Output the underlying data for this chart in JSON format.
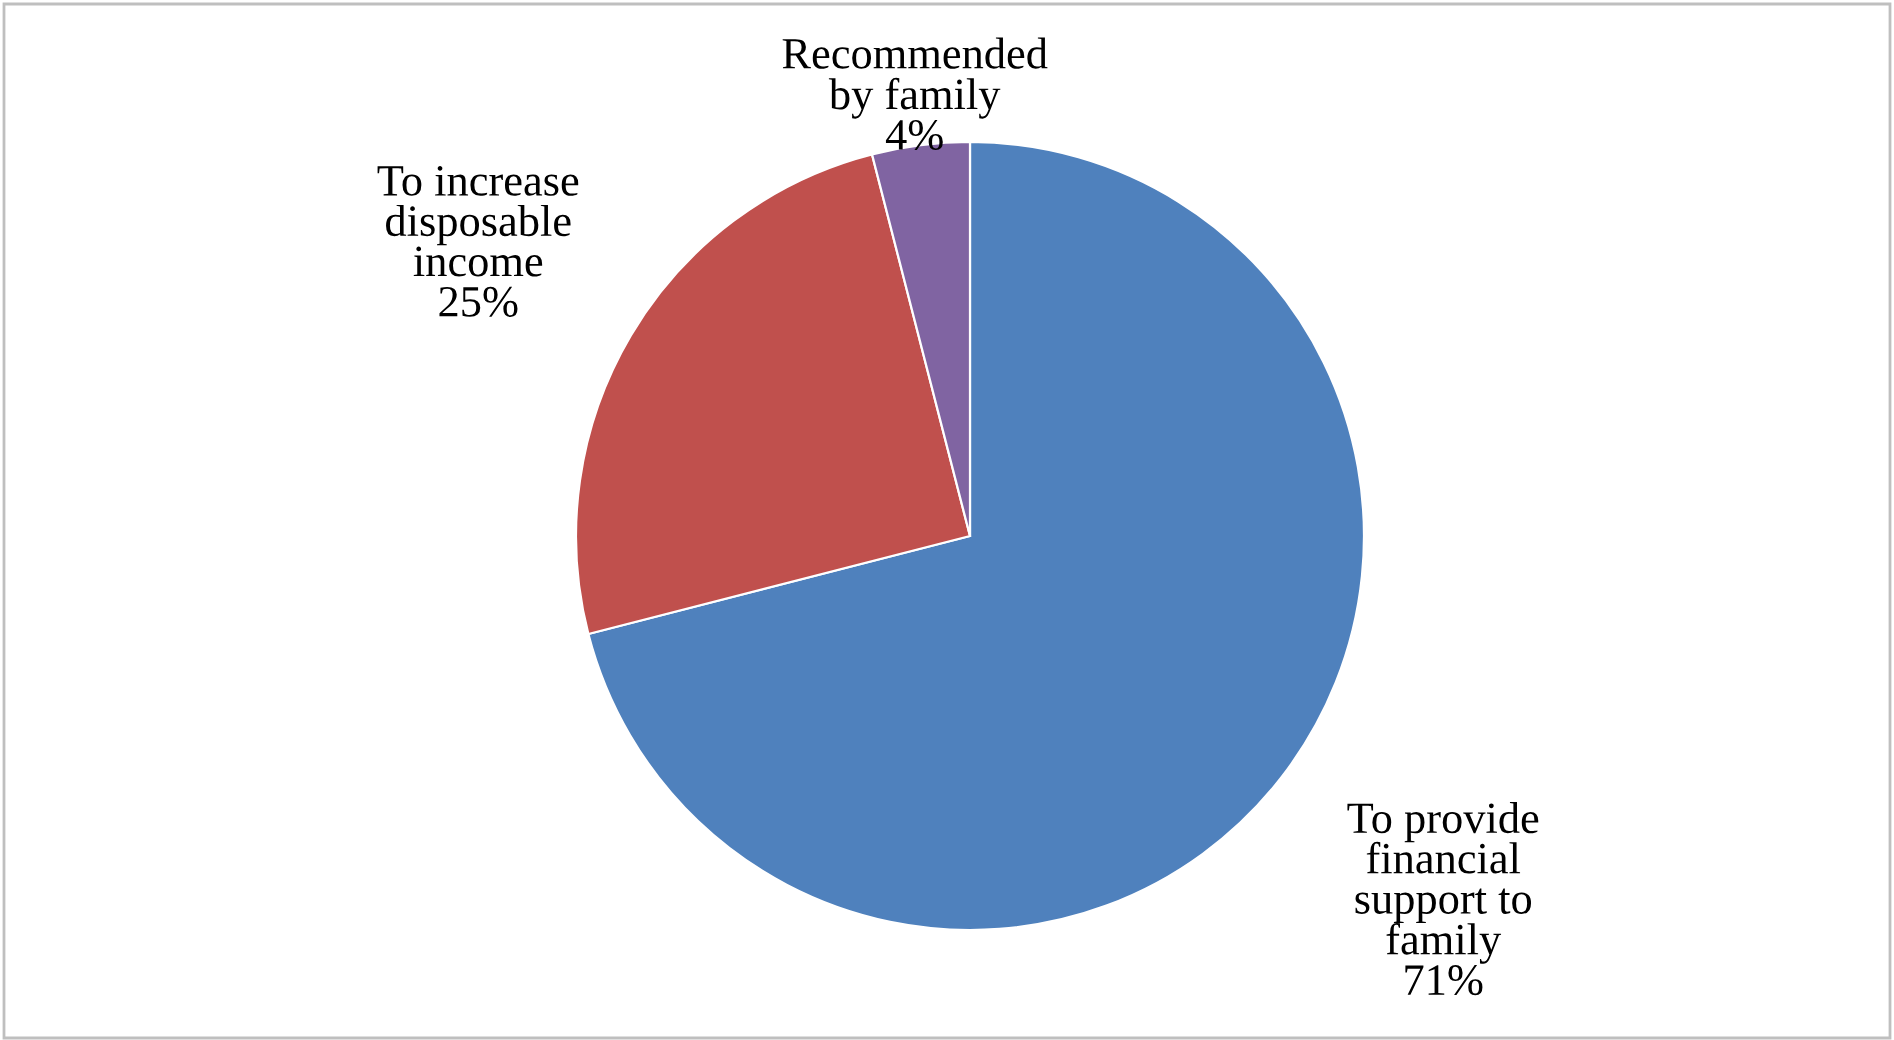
{
  "chart_data": {
    "type": "pie",
    "categories": [
      "To provide\nfinancial\nsupport to\nfamily",
      "To increase\ndisposable\nincome",
      "Recommended\nby family"
    ],
    "values": [
      71,
      25,
      4
    ],
    "colors": [
      "#4f81bd",
      "#c0504d",
      "#8064a2"
    ],
    "value_labels": [
      "71%",
      "25%",
      "4%"
    ]
  }
}
